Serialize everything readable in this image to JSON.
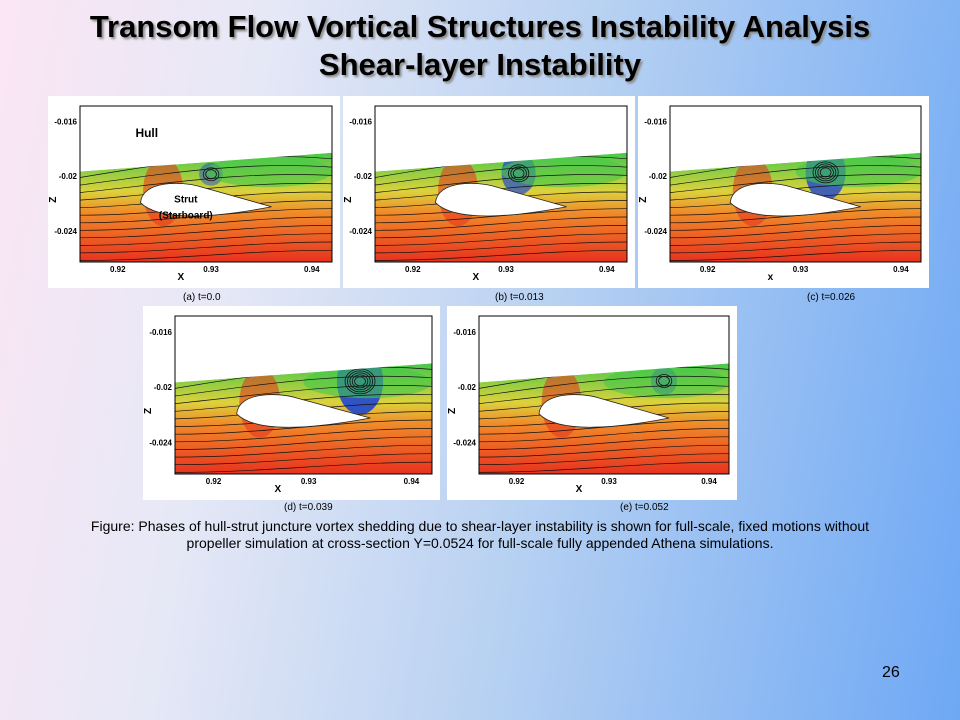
{
  "slide": {
    "title_line1": "Transom Flow Vortical Structures Instability Analysis",
    "title_line2": "Shear-layer Instability",
    "page_number": "26"
  },
  "axes": {
    "z_ticks": [
      "-0.016",
      "-0.02",
      "-0.024"
    ],
    "x_ticks": [
      "0.92",
      "0.93",
      "0.94"
    ],
    "z_label": "Z",
    "x_label": "X",
    "x_label_lowercase": "x"
  },
  "annotations": {
    "hull": "Hull",
    "strut_line1": "Strut",
    "strut_line2": "(Starboard)"
  },
  "panels": [
    {
      "caption": "(a) t=0.0",
      "vortex_strength": 0.15,
      "vortex_offset": 0.0
    },
    {
      "caption": "(b)  t=0.013",
      "vortex_strength": 0.55,
      "vortex_offset": 0.05
    },
    {
      "caption": "(c) t=0.026",
      "vortex_strength": 0.8,
      "vortex_offset": 0.1
    },
    {
      "caption": "(d)  t=0.039",
      "vortex_strength": 1.0,
      "vortex_offset": 0.2
    },
    {
      "caption": "(e)  t=0.052",
      "vortex_strength": 0.25,
      "vortex_offset": 0.22
    }
  ],
  "figure_caption": {
    "line1": "Figure: Phases of hull-strut juncture vortex shedding due to shear-layer instability is shown for full-scale, fixed motions without",
    "line2": "propeller simulation at cross-section Y=0.0524 for full-scale fully appended Athena simulations."
  },
  "colors": {
    "red": "#e8321e",
    "orange": "#f08a2a",
    "yellow": "#dcd23c",
    "green": "#46c84a",
    "blue": "#1e46d2"
  }
}
